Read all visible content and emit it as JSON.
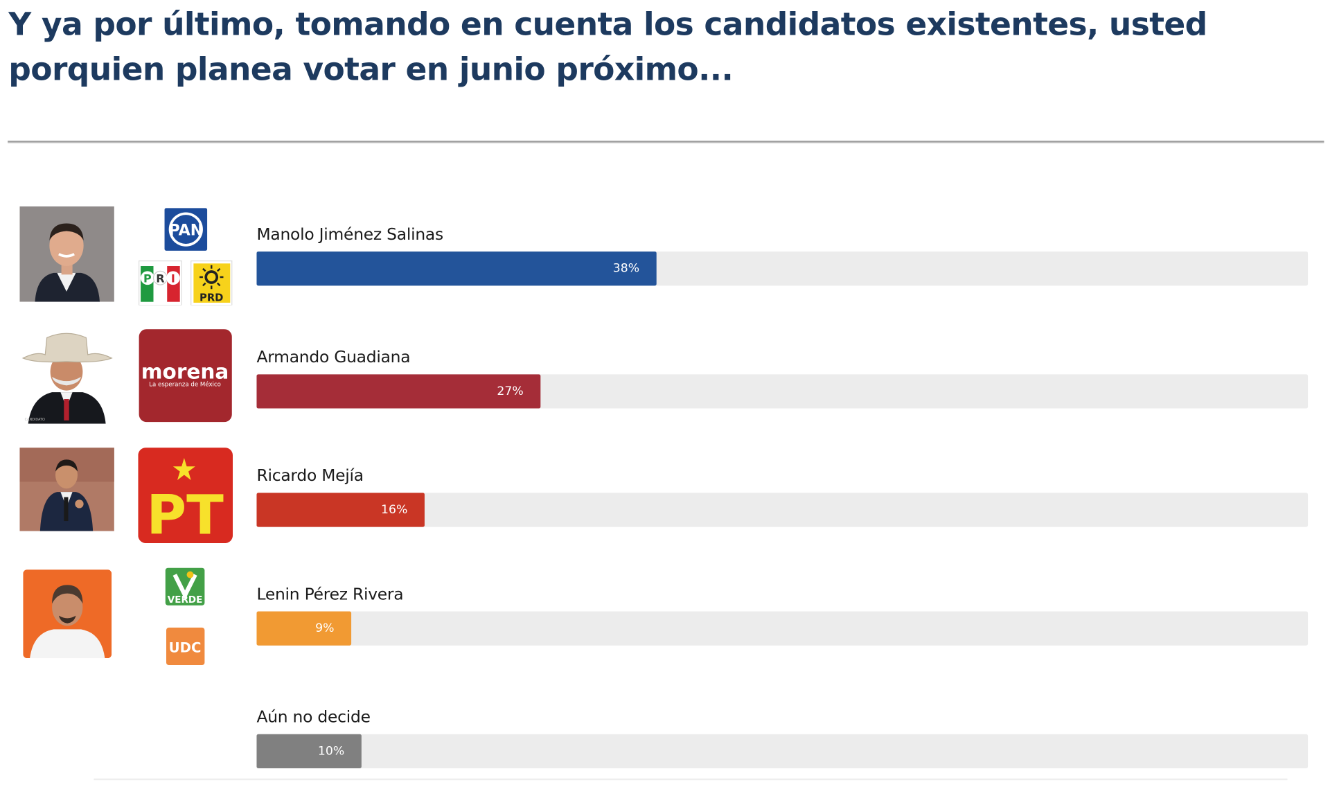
{
  "question": "Y ya por último, tomando en cuenta los candidatos existentes, usted porquien planea votar en junio próximo...",
  "chart_data": {
    "type": "bar",
    "orientation": "horizontal",
    "categories": [
      "Manolo Jiménez Salinas",
      "Armando Guadiana",
      "Ricardo Mejía",
      "Lenin Pérez Rivera",
      "Aún no decide"
    ],
    "values": [
      38,
      27,
      16,
      9,
      10
    ],
    "value_labels": [
      "38%",
      "27%",
      "16%",
      "9%",
      "10%"
    ],
    "xlim": [
      0,
      100
    ],
    "colors": [
      "#23549a",
      "#a52d38",
      "#c93625",
      "#f19a33",
      "#808080"
    ],
    "track_color": "#ececec",
    "grid": false,
    "legend": "none"
  },
  "logos": {
    "pan": "PAN",
    "pri": [
      "P",
      "R",
      "I"
    ],
    "prd": "PRD",
    "morena": "morena",
    "morena_tagline": "La esperanza de México",
    "pt": "PT",
    "verde": "VERDE",
    "udc": "UDC",
    "guadiana_photo_caption": "CANDIDATO"
  }
}
